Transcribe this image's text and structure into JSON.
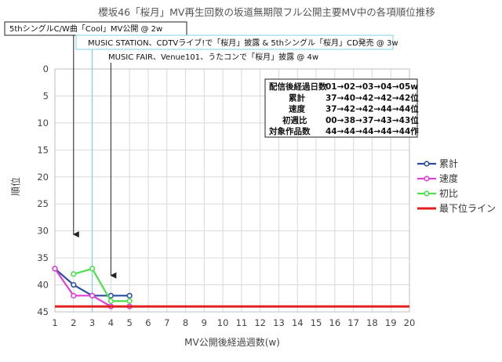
{
  "chart_data": {
    "type": "line",
    "title": "櫻坂46「桜月」MV再生回数の坂道無期限フル公開主要MV中の各項順位推移",
    "xlabel": "MV公開後経過週数(w)",
    "ylabel": "順位",
    "xlim": [
      1,
      20
    ],
    "ylim": [
      0,
      45
    ],
    "y_inverted": true,
    "x_ticks": [
      1,
      2,
      3,
      4,
      5,
      6,
      7,
      8,
      9,
      10,
      11,
      12,
      13,
      14,
      15,
      16,
      17,
      18,
      19,
      20
    ],
    "y_ticks": [
      0,
      5,
      10,
      15,
      20,
      25,
      30,
      35,
      40,
      45
    ],
    "grid": true,
    "legend_position": "right",
    "series": [
      {
        "name": "累計",
        "color": "#2e4f9e",
        "x": [
          1,
          2,
          3,
          4,
          5
        ],
        "y": [
          37,
          40,
          42,
          42,
          42
        ]
      },
      {
        "name": "速度",
        "color": "#e040d8",
        "x": [
          1,
          2,
          3,
          4,
          5
        ],
        "y": [
          37,
          42,
          42,
          44,
          44
        ]
      },
      {
        "name": "初比",
        "color": "#4ee04e",
        "x": [
          2,
          3,
          4,
          5
        ],
        "y": [
          38,
          37,
          43,
          43
        ]
      },
      {
        "name": "最下位ライン",
        "color": "#e02020",
        "x": [
          1,
          20
        ],
        "y": [
          44,
          44
        ]
      }
    ],
    "annotations": [
      {
        "text": "5thシングルC/W曲「Cool」MV公開 @ 2w",
        "week": 2
      },
      {
        "text": "MUSIC STATION、CDTVライブ!で「桜月」披露 & 5thシングル「桜月」CD発売 @ 3w",
        "week": 3
      },
      {
        "text": "MUSIC FAIR、Venue101、うたコンで「桜月」披露 @ 4w",
        "week": 4
      }
    ],
    "summary_box": {
      "rows": [
        {
          "label": "配信後経過日数",
          "values": "01→02→03→04→05w"
        },
        {
          "label": "累計",
          "values": "37→40→42→42→42位"
        },
        {
          "label": "速度",
          "values": "37→42→42→44→44位"
        },
        {
          "label": "初週比",
          "values": "00→38→37→43→43位"
        },
        {
          "label": "対象作品数",
          "values": "44→44→44→44→44作"
        }
      ]
    }
  }
}
